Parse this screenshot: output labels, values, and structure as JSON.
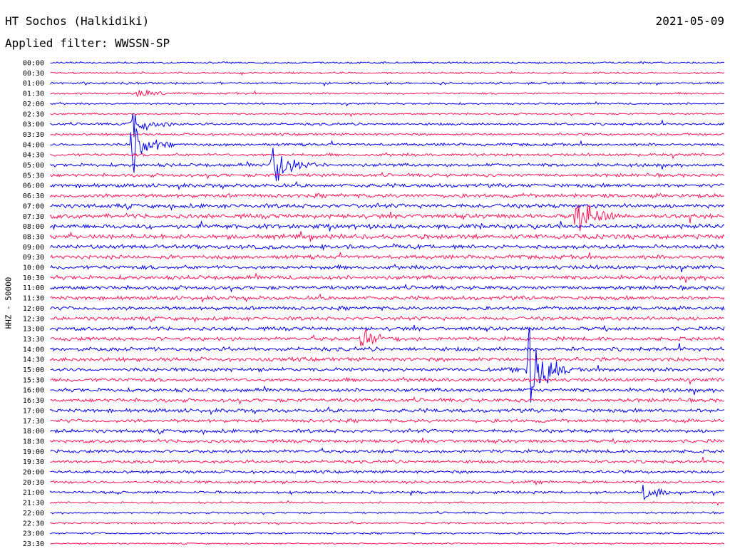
{
  "header": {
    "station": "HT Sochos (Halkidiki)",
    "date": "2021-05-09",
    "filter": "Applied filter: WWSSN-SP"
  },
  "chart_data": {
    "type": "line",
    "ylabel": "HHZ - 50000",
    "colors": [
      "#0000ee",
      "#ff1654"
    ],
    "row_labels": [
      "00:00",
      "00:30",
      "01:00",
      "01:30",
      "02:00",
      "02:30",
      "03:00",
      "03:30",
      "04:00",
      "04:30",
      "05:00",
      "05:30",
      "06:00",
      "06:30",
      "07:00",
      "07:30",
      "08:00",
      "08:30",
      "09:00",
      "09:30",
      "10:00",
      "10:30",
      "11:00",
      "11:30",
      "12:00",
      "12:30",
      "13:00",
      "13:30",
      "14:00",
      "14:30",
      "15:00",
      "15:30",
      "16:00",
      "16:30",
      "17:00",
      "17:30",
      "18:00",
      "18:30",
      "19:00",
      "19:30",
      "20:00",
      "20:30",
      "21:00",
      "21:30",
      "22:00",
      "22:30",
      "23:00",
      "23:30"
    ],
    "noise_level": [
      1.0,
      1.0,
      1.2,
      1.0,
      1.0,
      1.0,
      1.3,
      1.3,
      1.5,
      1.6,
      1.8,
      1.8,
      2.0,
      2.2,
      2.3,
      2.4,
      2.5,
      2.5,
      2.2,
      2.1,
      2.2,
      2.2,
      2.1,
      2.1,
      2.0,
      2.0,
      2.0,
      2.1,
      2.1,
      2.1,
      2.0,
      2.0,
      2.0,
      2.0,
      2.0,
      1.9,
      1.9,
      1.8,
      1.8,
      1.7,
      1.6,
      1.5,
      1.4,
      1.0,
      1.0,
      1.0,
      1.0,
      0.8
    ],
    "events": [
      {
        "row": 3,
        "t": 0.13,
        "amp": 8
      },
      {
        "row": 6,
        "t": 0.12,
        "amp": 30
      },
      {
        "row": 8,
        "t": 0.12,
        "amp": 55
      },
      {
        "row": 10,
        "t": 0.33,
        "amp": 40
      },
      {
        "row": 15,
        "t": 0.78,
        "amp": 45
      },
      {
        "row": 27,
        "t": 0.46,
        "amp": 14
      },
      {
        "row": 30,
        "t": 0.71,
        "amp": 90
      },
      {
        "row": 42,
        "t": 0.88,
        "amp": 12
      }
    ]
  }
}
